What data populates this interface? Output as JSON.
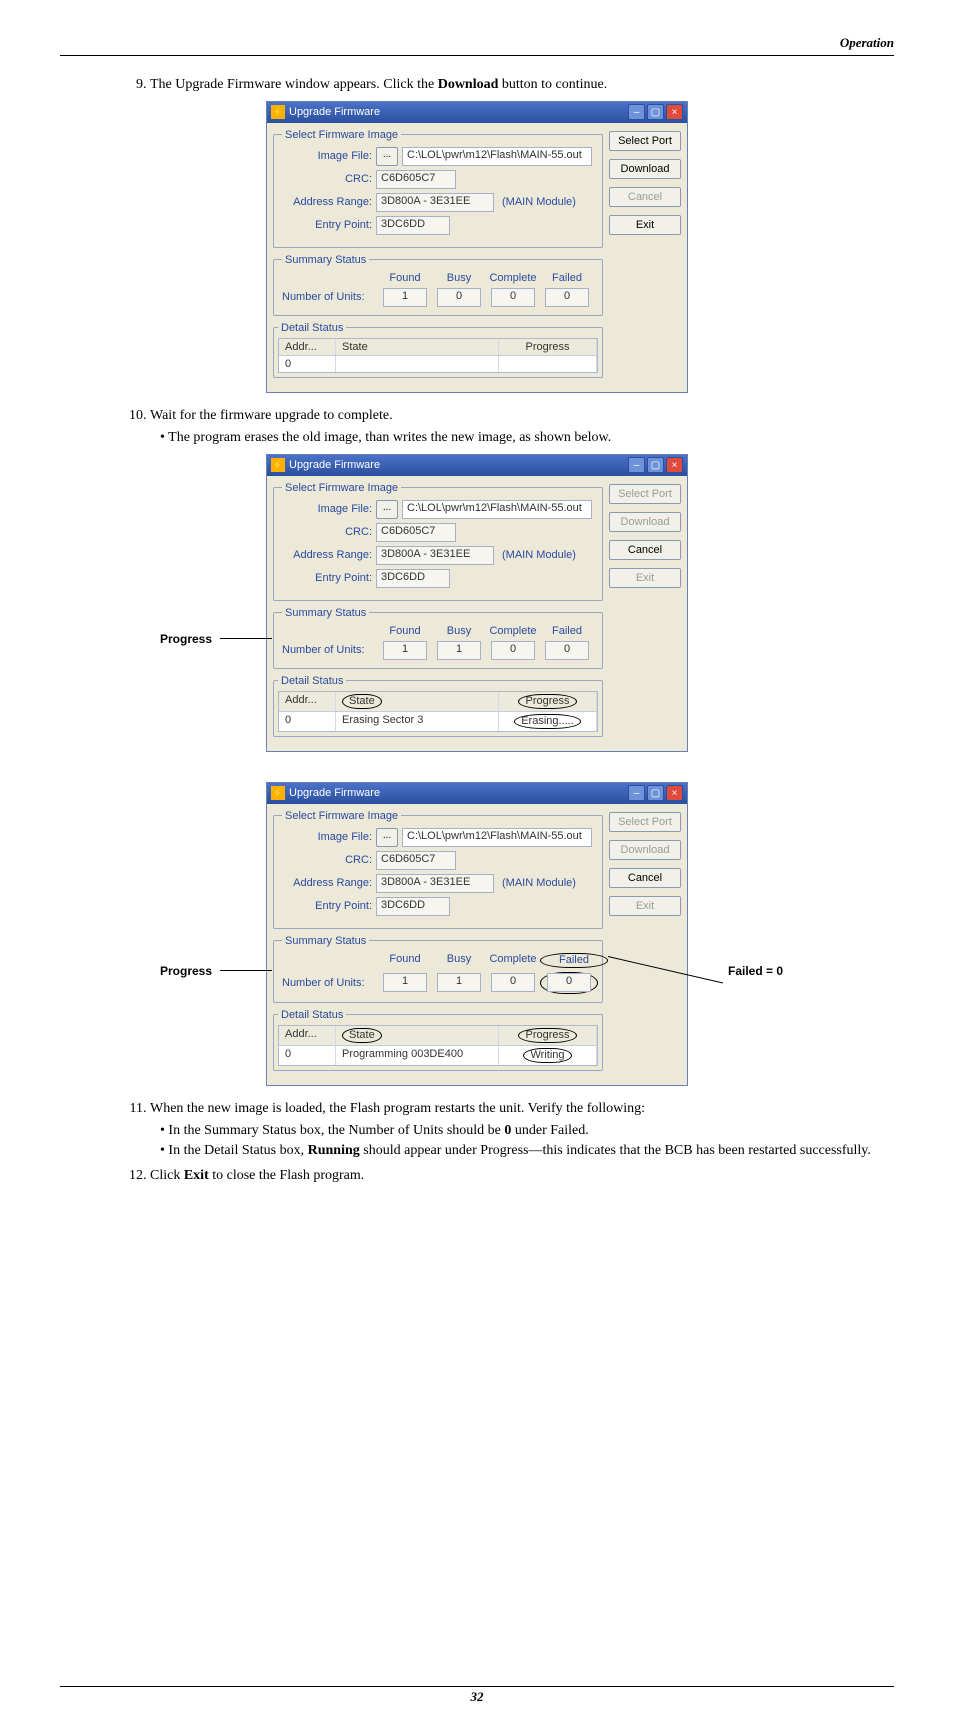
{
  "header": {
    "section": "Operation"
  },
  "steps": {
    "s9": {
      "num": "9.",
      "textA": "The Upgrade Firmware window appears. Click the ",
      "bold": "Download",
      "textB": " button to continue."
    },
    "s10": {
      "num": "10.",
      "text": "Wait for the firmware upgrade to complete.",
      "b1": "The program erases the old image, than writes the new image, as shown below."
    },
    "s11": {
      "num": "11.",
      "text": "When the new image is loaded, the Flash program restarts the unit. Verify the following:",
      "b1a": "In the Summary Status box, the Number of Units should be ",
      "b1bold": "0",
      "b1b": " under Failed.",
      "b2a": "In the Detail Status box, ",
      "b2bold": "Running",
      "b2b": " should appear under Progress—this indicates that the BCB has been restarted successfully."
    },
    "s12": {
      "num": "12.",
      "textA": "Click ",
      "bold": "Exit",
      "textB": " to close the Flash program."
    }
  },
  "callouts": {
    "progress": "Progress",
    "failed": "Failed = 0"
  },
  "dlg": {
    "title": "Upgrade Firmware",
    "grp1": "Select Firmware Image",
    "lbl_file": "Image File:",
    "browse": "...",
    "path": "C:\\LOL\\pwr\\m12\\Flash\\MAIN-55.out",
    "lbl_crc": "CRC:",
    "crc": "C6D605C7",
    "lbl_addr": "Address Range:",
    "addr": "3D800A - 3E31EE",
    "module": "(MAIN Module)",
    "lbl_ep": "Entry Point:",
    "ep": "3DC6DD",
    "grp2": "Summary Status",
    "col_found": "Found",
    "col_busy": "Busy",
    "col_complete": "Complete",
    "col_failed": "Failed",
    "num_units": "Number of Units:",
    "grp3": "Detail Status",
    "th_addr": "Addr...",
    "th_state": "State",
    "th_prog": "Progress",
    "btn_select": "Select Port",
    "btn_download": "Download",
    "btn_cancel": "Cancel",
    "btn_exit": "Exit"
  },
  "fig1": {
    "found": "1",
    "busy": "0",
    "complete": "0",
    "failed": "0",
    "addr": "0",
    "state": "",
    "prog": "",
    "buttons_disabled": {
      "select": false,
      "download": false,
      "cancel": true,
      "exit": false
    }
  },
  "fig2": {
    "found": "1",
    "busy": "1",
    "complete": "0",
    "failed": "0",
    "addr": "0",
    "state": "Erasing Sector 3",
    "prog": "Erasing.....",
    "circle_state": true,
    "circle_prog": true,
    "buttons_disabled": {
      "select": true,
      "download": true,
      "cancel": false,
      "exit": true
    }
  },
  "fig3": {
    "found": "1",
    "busy": "1",
    "complete": "0",
    "failed": "0",
    "addr": "0",
    "state": "Programming 003DE400",
    "prog": "Writing",
    "circle_state": true,
    "circle_prog": true,
    "circle_failed": true,
    "buttons_disabled": {
      "select": true,
      "download": true,
      "cancel": false,
      "exit": true
    }
  },
  "colors": {
    "titlebar_top": "#4a72c8",
    "titlebar_bot": "#2b4fa0",
    "panel": "#ece9d8",
    "legend": "#2a4aa0"
  },
  "footer": {
    "page": "32"
  }
}
